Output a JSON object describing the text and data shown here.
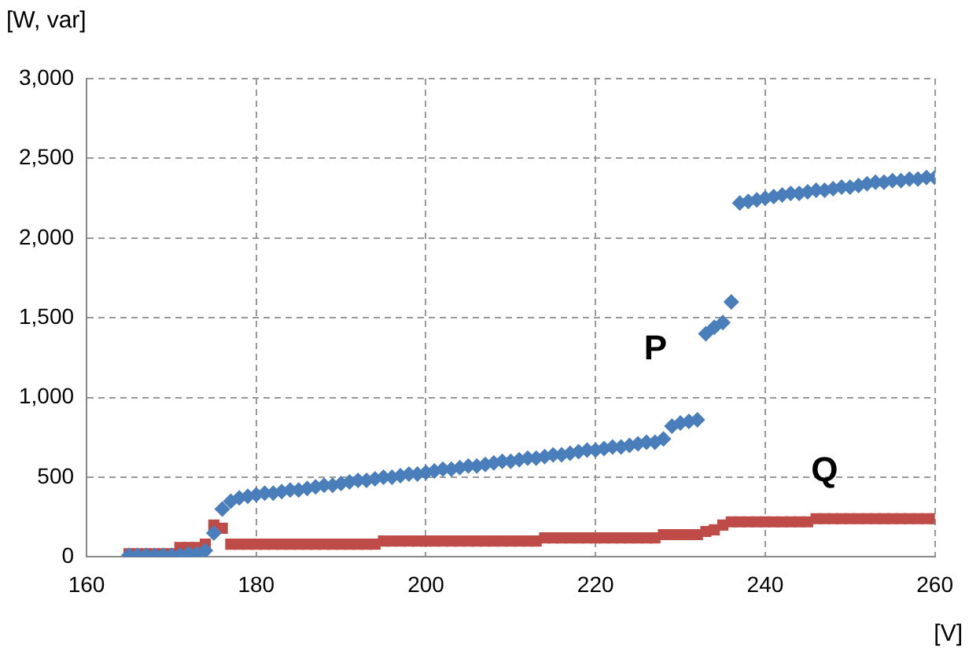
{
  "chart_data": {
    "type": "scatter",
    "ylabel": "[W, var]",
    "xlabel": "[V]",
    "xlim": [
      160,
      260
    ],
    "xticks": [
      160,
      180,
      200,
      220,
      240,
      260
    ],
    "ylim": [
      0,
      3000
    ],
    "yticks": [
      0,
      {
        "value": 500,
        "label": "500"
      },
      {
        "value": 1000,
        "label": "1,000"
      },
      {
        "value": 1500,
        "label": "1,500"
      },
      {
        "value": 2000,
        "label": "2,000"
      },
      {
        "value": 2500,
        "label": "2,500"
      },
      {
        "value": 3000,
        "label": "3,000"
      }
    ],
    "grid": true,
    "legend": false,
    "x": [
      165,
      166,
      167,
      168,
      169,
      170,
      171,
      172,
      173,
      174,
      175,
      176,
      177,
      178,
      179,
      180,
      181,
      182,
      183,
      184,
      185,
      186,
      187,
      188,
      189,
      190,
      191,
      192,
      193,
      194,
      195,
      196,
      197,
      198,
      199,
      200,
      201,
      202,
      203,
      204,
      205,
      206,
      207,
      208,
      209,
      210,
      211,
      212,
      213,
      214,
      215,
      216,
      217,
      218,
      219,
      220,
      221,
      222,
      223,
      224,
      225,
      226,
      227,
      228,
      229,
      230,
      231,
      232,
      233,
      234,
      235,
      236,
      237,
      238,
      239,
      240,
      241,
      242,
      243,
      244,
      245,
      246,
      247,
      248,
      249,
      250,
      251,
      252,
      253,
      254,
      255,
      256,
      257,
      258,
      259,
      260
    ],
    "series": [
      {
        "name": "P",
        "color": "#4a7ebb",
        "marker": "diamond",
        "values": [
          10,
          10,
          10,
          10,
          10,
          10,
          10,
          20,
          20,
          40,
          150,
          300,
          350,
          370,
          380,
          390,
          400,
          400,
          410,
          420,
          420,
          430,
          440,
          450,
          450,
          460,
          470,
          480,
          480,
          490,
          500,
          500,
          510,
          520,
          520,
          530,
          540,
          550,
          550,
          560,
          570,
          570,
          580,
          590,
          600,
          600,
          610,
          620,
          620,
          630,
          640,
          640,
          650,
          660,
          670,
          670,
          680,
          690,
          690,
          700,
          710,
          720,
          720,
          740,
          820,
          840,
          850,
          860,
          1400,
          1440,
          1470,
          1600,
          2220,
          2230,
          2240,
          2250,
          2260,
          2270,
          2280,
          2280,
          2290,
          2300,
          2300,
          2310,
          2320,
          2320,
          2330,
          2340,
          2350,
          2350,
          2360,
          2360,
          2370,
          2370,
          2380,
          2380
        ]
      },
      {
        "name": "Q",
        "color": "#be4b48",
        "marker": "square",
        "values": [
          20,
          20,
          20,
          20,
          20,
          20,
          60,
          60,
          60,
          80,
          200,
          180,
          80,
          80,
          80,
          80,
          80,
          80,
          80,
          80,
          80,
          80,
          80,
          80,
          80,
          80,
          80,
          80,
          80,
          80,
          100,
          100,
          100,
          100,
          100,
          100,
          100,
          100,
          100,
          100,
          100,
          100,
          100,
          100,
          100,
          100,
          100,
          100,
          100,
          120,
          120,
          120,
          120,
          120,
          120,
          120,
          120,
          120,
          120,
          120,
          120,
          120,
          120,
          140,
          140,
          140,
          140,
          140,
          160,
          170,
          200,
          220,
          220,
          220,
          220,
          220,
          220,
          220,
          220,
          220,
          220,
          240,
          240,
          240,
          240,
          240,
          240,
          240,
          240,
          240,
          240,
          240,
          240,
          240,
          240,
          240
        ]
      }
    ]
  }
}
